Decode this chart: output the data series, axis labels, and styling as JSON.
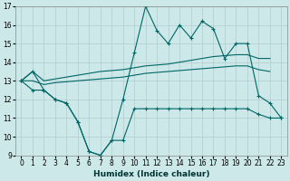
{
  "xlabel": "Humidex (Indice chaleur)",
  "bg_color": "#cce8e8",
  "grid_color": "#b0cccc",
  "line_color": "#006666",
  "ylim": [
    9,
    17
  ],
  "xlim": [
    -0.5,
    23.5
  ],
  "yticks": [
    9,
    10,
    11,
    12,
    13,
    14,
    15,
    16,
    17
  ],
  "xticks": [
    0,
    1,
    2,
    3,
    4,
    5,
    6,
    7,
    8,
    9,
    10,
    11,
    12,
    13,
    14,
    15,
    16,
    17,
    18,
    19,
    20,
    21,
    22,
    23
  ],
  "x_values": [
    0,
    1,
    2,
    3,
    4,
    5,
    6,
    7,
    8,
    9,
    10,
    11,
    12,
    13,
    14,
    15,
    16,
    17,
    18,
    19,
    20,
    21,
    22,
    23
  ],
  "max_y": [
    13.0,
    13.5,
    12.5,
    12.0,
    11.8,
    10.8,
    9.2,
    9.0,
    9.8,
    12.0,
    14.5,
    17.0,
    15.7,
    15.0,
    16.0,
    15.3,
    16.2,
    15.8,
    14.2,
    15.0,
    15.0,
    12.2,
    11.8,
    11.0
  ],
  "min_y": [
    13.0,
    12.5,
    12.5,
    12.0,
    11.8,
    10.8,
    9.2,
    9.0,
    9.8,
    9.8,
    11.5,
    11.5,
    11.5,
    11.5,
    11.5,
    11.5,
    11.5,
    11.5,
    11.5,
    11.5,
    11.5,
    11.2,
    11.0,
    11.0
  ],
  "avg_high_y": [
    13.0,
    13.5,
    13.0,
    13.1,
    13.2,
    13.3,
    13.4,
    13.5,
    13.55,
    13.6,
    13.7,
    13.8,
    13.85,
    13.9,
    14.0,
    14.1,
    14.2,
    14.3,
    14.35,
    14.4,
    14.4,
    14.2,
    14.2,
    null
  ],
  "avg_low_y": [
    13.0,
    13.0,
    12.8,
    12.9,
    12.95,
    13.0,
    13.05,
    13.1,
    13.15,
    13.2,
    13.3,
    13.4,
    13.45,
    13.5,
    13.55,
    13.6,
    13.65,
    13.7,
    13.75,
    13.8,
    13.8,
    13.6,
    13.5,
    null
  ]
}
